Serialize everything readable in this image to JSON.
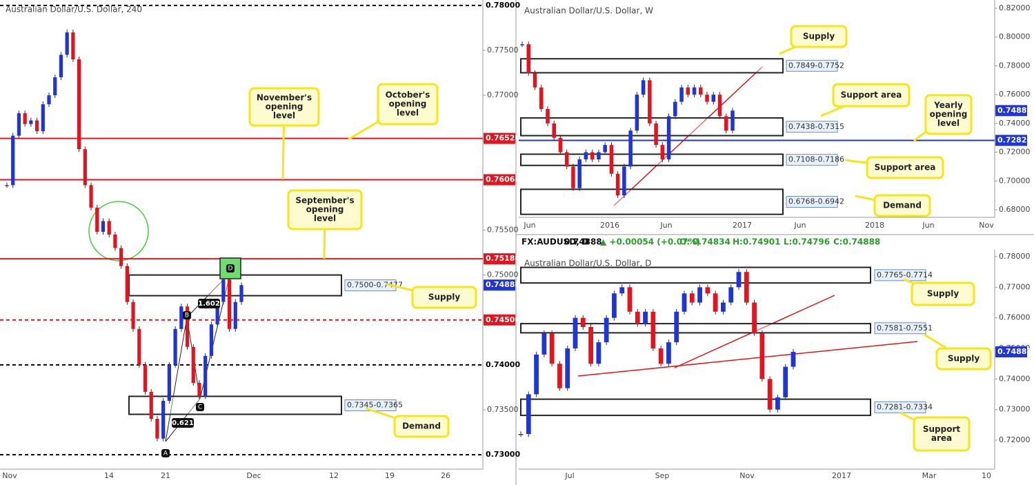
{
  "chart_data": [
    {
      "type": "candlestick",
      "title": "Australian Dollar/U.S. Dollar, 240",
      "values": [
        0.76,
        0.7655,
        0.768,
        0.7668,
        0.7672,
        0.766,
        0.769,
        0.77,
        0.772,
        0.7745,
        0.777,
        0.774,
        0.764,
        0.76,
        0.7575,
        0.7548,
        0.756,
        0.7545,
        0.753,
        0.751,
        0.747,
        0.744,
        0.74,
        0.737,
        0.734,
        0.7318,
        0.736,
        0.74,
        0.744,
        0.7465,
        0.742,
        0.738,
        0.7365,
        0.741,
        0.7445,
        0.747,
        0.7495,
        0.744,
        0.747,
        0.74888
      ],
      "up_color": "#1f35d6",
      "down_color": "#e3141e",
      "ylim": [
        0.7284,
        0.7806
      ],
      "yticks": [
        {
          "value": 0.735,
          "label": "0.73500"
        },
        {
          "value": 0.75,
          "label": "0.75000"
        },
        {
          "value": 0.755,
          "label": "0.75500"
        },
        {
          "value": 0.77,
          "label": "0.77000"
        },
        {
          "value": 0.775,
          "label": "0.77500"
        }
      ],
      "levels": [
        {
          "value": 0.78,
          "label": "0.78000",
          "color": "#000000",
          "style": "dashed"
        },
        {
          "value": 0.7652,
          "label": "0.76520",
          "color": "#e3141e",
          "style": "solid"
        },
        {
          "value": 0.7606,
          "label": "0.76060",
          "color": "#e3141e",
          "style": "solid"
        },
        {
          "value": 0.7518,
          "label": "0.75180",
          "color": "#e3141e",
          "style": "solid"
        },
        {
          "value": 0.745,
          "label": "0.74500",
          "color": "#e3141e",
          "style": "dashed"
        },
        {
          "value": 0.74,
          "label": "0.74000",
          "color": "#000000",
          "style": "dashed"
        },
        {
          "value": 0.73,
          "label": "0.73000",
          "color": "#000000",
          "style": "dashed"
        }
      ],
      "current": {
        "value": 0.74888,
        "label": "0.74888"
      },
      "zones": [
        {
          "label": "0.7500-0.7477",
          "high": 0.75,
          "low": 0.7477
        },
        {
          "label": "0.7345-0.7365",
          "high": 0.7365,
          "low": 0.7345
        }
      ],
      "x_labels": [
        "Nov",
        "14",
        "21",
        "Dec",
        "12",
        "19",
        "26"
      ],
      "callouts": [
        [
          "November's",
          "opening",
          "level"
        ],
        [
          "October's",
          "opening",
          "level"
        ],
        [
          "September's",
          "opening",
          "level"
        ],
        [
          "Supply"
        ],
        [
          "Demand"
        ]
      ],
      "pattern_points": [
        "A",
        "B",
        "C",
        "D"
      ],
      "ratios": [
        "1.602",
        "0.621"
      ]
    },
    {
      "type": "candlestick",
      "title": "Australian Dollar/U.S. Dollar, W",
      "values": [
        0.795,
        0.775,
        0.765,
        0.75,
        0.74,
        0.73,
        0.72,
        0.71,
        0.695,
        0.715,
        0.72,
        0.715,
        0.72,
        0.725,
        0.705,
        0.69,
        0.71,
        0.735,
        0.76,
        0.77,
        0.74,
        0.725,
        0.715,
        0.745,
        0.755,
        0.765,
        0.76,
        0.765,
        0.76,
        0.755,
        0.76,
        0.745,
        0.735,
        0.74888
      ],
      "up_color": "#1f35d6",
      "down_color": "#e3141e",
      "ylim": [
        0.67472,
        0.82576
      ],
      "yticks": [
        {
          "value": 0.68,
          "label": "0.68000"
        },
        {
          "value": 0.7,
          "label": "0.70000"
        },
        {
          "value": 0.72,
          "label": "0.72000"
        },
        {
          "value": 0.74,
          "label": "0.74000"
        },
        {
          "value": 0.76,
          "label": "0.76000"
        },
        {
          "value": 0.78,
          "label": "0.78000"
        },
        {
          "value": 0.8,
          "label": "0.80000"
        },
        {
          "value": 0.82,
          "label": "0.82000"
        }
      ],
      "levels": [
        {
          "value": 0.7282,
          "label": "0.72820",
          "color": "#1f35d6",
          "style": "solid"
        }
      ],
      "current": {
        "value": 0.74888,
        "label": "0.74888"
      },
      "zones": [
        {
          "label": "0.7849-0.7752",
          "high": 0.7849,
          "low": 0.7752
        },
        {
          "label": "0.7438-0.7315",
          "high": 0.7438,
          "low": 0.7315
        },
        {
          "label": "0.7108-0.7186",
          "high": 0.7186,
          "low": 0.7108
        },
        {
          "label": "0.6768-0.6942",
          "high": 0.6942,
          "low": 0.6768
        }
      ],
      "x_labels": [
        "Jun",
        "2016",
        "Jun",
        "2017",
        "Jun",
        "2018",
        "Jun",
        "Nov"
      ],
      "callouts": [
        [
          "Supply"
        ],
        [
          "Support area"
        ],
        [
          "Yearly",
          "opening",
          "level"
        ],
        [
          "Support area"
        ],
        [
          "Demand"
        ]
      ]
    },
    {
      "type": "candlestick",
      "title": "Australian Dollar/U.S. Dollar, D",
      "header": [
        "FX:AUDUSD, D",
        "0.74888",
        "▲ +0.00054 (+0.07%)",
        "O: 0.74834",
        "H:0.74901",
        "L:0.74796",
        "C:0.74888"
      ],
      "values": [
        0.722,
        0.735,
        0.748,
        0.755,
        0.745,
        0.737,
        0.75,
        0.76,
        0.757,
        0.745,
        0.752,
        0.76,
        0.768,
        0.77,
        0.762,
        0.758,
        0.762,
        0.75,
        0.745,
        0.752,
        0.762,
        0.768,
        0.765,
        0.77,
        0.768,
        0.762,
        0.765,
        0.77,
        0.775,
        0.765,
        0.755,
        0.74,
        0.73,
        0.734,
        0.744,
        0.74888
      ],
      "up_color": "#1f35d6",
      "down_color": "#e3141e",
      "ylim": [
        0.71053,
        0.78226
      ],
      "yticks": [
        {
          "value": 0.72,
          "label": "0.72000"
        },
        {
          "value": 0.73,
          "label": "0.73000"
        },
        {
          "value": 0.74,
          "label": "0.74000"
        },
        {
          "value": 0.75,
          "label": "0.75000"
        },
        {
          "value": 0.76,
          "label": "0.76000"
        },
        {
          "value": 0.77,
          "label": "0.77000"
        },
        {
          "value": 0.78,
          "label": "0.78000"
        }
      ],
      "levels": [],
      "current": {
        "value": 0.74888,
        "label": "0.74888"
      },
      "zones": [
        {
          "label": "0.7765-0.7714",
          "high": 0.7765,
          "low": 0.7714
        },
        {
          "label": "0.7581-0.7551",
          "high": 0.7581,
          "low": 0.7551
        },
        {
          "label": "0.7281-0.7334",
          "high": 0.7334,
          "low": 0.7281
        }
      ],
      "x_labels": [
        "Jul",
        "Sep",
        "Nov",
        "2017",
        "Mar",
        "10"
      ],
      "callouts": [
        [
          "Supply"
        ],
        [
          "Supply"
        ],
        [
          "Support",
          "area"
        ]
      ]
    }
  ]
}
